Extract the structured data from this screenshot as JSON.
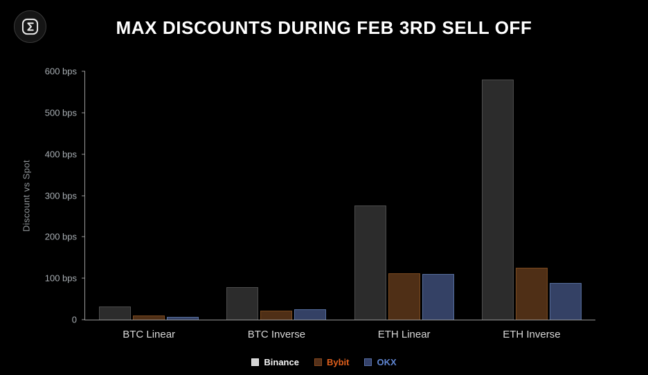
{
  "title": "MAX DISCOUNTS DURING FEB 3RD SELL OFF",
  "icons": {
    "logo": "sigma-logo-icon"
  },
  "colors": {
    "background": "#000000",
    "axis": "#9a9a9a",
    "tick_text": "#a7adb2",
    "category_text": "#d8d8d8",
    "title_text": "#ffffff"
  },
  "chart_data": {
    "type": "bar",
    "categories": [
      "BTC Linear",
      "BTC Inverse",
      "ETH Linear",
      "ETH Inverse"
    ],
    "series": [
      {
        "name": "Binance",
        "values": [
          32,
          78,
          275,
          580
        ],
        "fill": "#2c2c2c",
        "border": "#4d4d4d",
        "swatch_fill": "#d4d4d4",
        "swatch_border": "#f0f0f0",
        "label_color": "#f5f5f5"
      },
      {
        "name": "Bybit",
        "values": [
          10,
          22,
          112,
          125
        ],
        "fill": "#4f2f16",
        "border": "#7c4a1f",
        "swatch_fill": "#53301a",
        "swatch_border": "#8a4a1e",
        "label_color": "#e2601c"
      },
      {
        "name": "OKX",
        "values": [
          6,
          25,
          110,
          88
        ],
        "fill": "#344165",
        "border": "#566e9e",
        "swatch_fill": "#35426a",
        "swatch_border": "#5870a8",
        "label_color": "#5f85d1"
      }
    ],
    "title": "MAX DISCOUNTS DURING FEB 3RD SELL OFF",
    "xlabel": "",
    "ylabel": "Discount vs Spot",
    "ylim": [
      0,
      600
    ],
    "yticks": [
      {
        "value": 0,
        "label": "0"
      },
      {
        "value": 100,
        "label": "100 bps"
      },
      {
        "value": 200,
        "label": "200 bps"
      },
      {
        "value": 300,
        "label": "300 bps"
      },
      {
        "value": 400,
        "label": "400 bps"
      },
      {
        "value": 500,
        "label": "500 bps"
      },
      {
        "value": 600,
        "label": "600 bps"
      }
    ],
    "grid": false,
    "legend_position": "bottom"
  }
}
